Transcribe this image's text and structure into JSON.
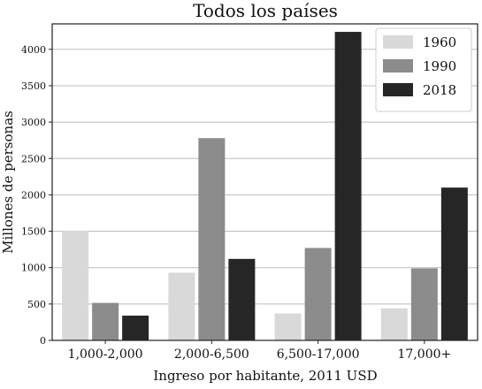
{
  "chart_data": {
    "type": "bar",
    "title": "Todos los países",
    "xlabel": "Ingreso por habitante, 2011 USD",
    "ylabel": "Millones de personas",
    "categories": [
      "1,000-2,000",
      "2,000-6,500",
      "6,500-17,000",
      "17,000+"
    ],
    "series": [
      {
        "name": "1960",
        "values": [
          1510,
          930,
          370,
          440
        ],
        "color": "#d9d9d9"
      },
      {
        "name": "1990",
        "values": [
          515,
          2780,
          1270,
          990
        ],
        "color": "#8c8c8c"
      },
      {
        "name": "2018",
        "values": [
          340,
          1120,
          4240,
          2100
        ],
        "color": "#262626"
      }
    ],
    "ylim": [
      0,
      4350
    ],
    "yticks": [
      0,
      500,
      1000,
      1500,
      2000,
      2500,
      3000,
      3500,
      4000
    ],
    "grid": "horizontal",
    "legend": "top-right"
  }
}
